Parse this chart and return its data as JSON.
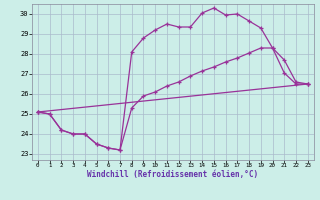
{
  "xlabel": "Windchill (Refroidissement éolien,°C)",
  "background_color": "#cceee8",
  "line_color": "#993399",
  "grid_color": "#aabbcc",
  "xlim": [
    -0.5,
    23.5
  ],
  "ylim": [
    22.7,
    30.5
  ],
  "xticks": [
    0,
    1,
    2,
    3,
    4,
    5,
    6,
    7,
    8,
    9,
    10,
    11,
    12,
    13,
    14,
    15,
    16,
    17,
    18,
    19,
    20,
    21,
    22,
    23
  ],
  "yticks": [
    23,
    24,
    25,
    26,
    27,
    28,
    29,
    30
  ],
  "line1_x": [
    0,
    1,
    2,
    3,
    4,
    5,
    6,
    7,
    8,
    9,
    10,
    11,
    12,
    13,
    14,
    15,
    16,
    17,
    18,
    19,
    20,
    21,
    22,
    23
  ],
  "line1_y": [
    25.1,
    25.0,
    24.2,
    24.0,
    24.0,
    23.5,
    23.3,
    23.2,
    28.1,
    28.8,
    29.2,
    29.5,
    29.35,
    29.35,
    30.05,
    30.3,
    29.95,
    30.0,
    29.65,
    29.3,
    28.3,
    27.05,
    26.5,
    26.5
  ],
  "line2_x": [
    0,
    1,
    2,
    3,
    4,
    5,
    6,
    7,
    8,
    9,
    10,
    11,
    12,
    13,
    14,
    15,
    16,
    17,
    18,
    19,
    20,
    21,
    22,
    23
  ],
  "line2_y": [
    25.1,
    25.0,
    24.2,
    24.0,
    24.0,
    23.5,
    23.3,
    23.2,
    25.3,
    25.9,
    26.1,
    26.4,
    26.6,
    26.9,
    27.15,
    27.35,
    27.6,
    27.8,
    28.05,
    28.3,
    28.3,
    27.7,
    26.6,
    26.5
  ],
  "line3_x": [
    0,
    23
  ],
  "line3_y": [
    25.1,
    26.5
  ]
}
